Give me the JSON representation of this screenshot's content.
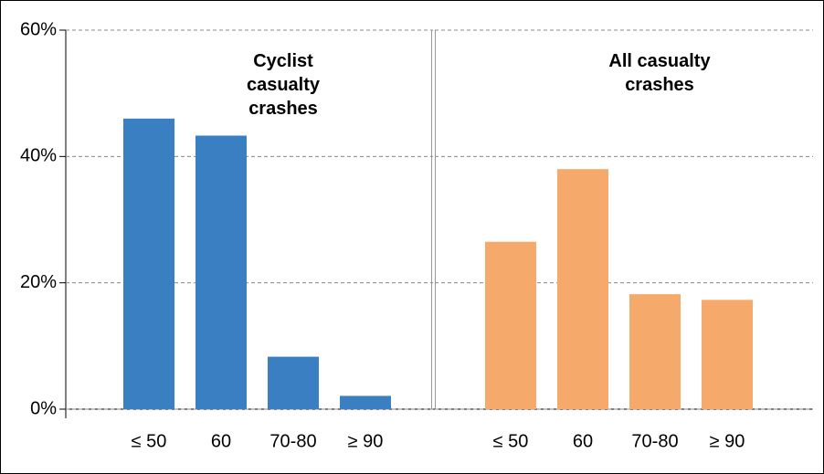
{
  "chart_data": [
    {
      "type": "bar",
      "title": "Cyclist casualty crashes",
      "categories": [
        "≤ 50",
        "60",
        "70-80",
        "≥ 90"
      ],
      "values": [
        46,
        43.3,
        8.3,
        2.1
      ],
      "color": "#3a7fc1",
      "ylim": [
        0,
        60
      ],
      "yticks": [
        {
          "value": 0,
          "label": "0%"
        },
        {
          "value": 20,
          "label": "20%"
        },
        {
          "value": 40,
          "label": "40%"
        },
        {
          "value": 60,
          "label": "60%"
        }
      ],
      "grid": true
    },
    {
      "type": "bar",
      "title": "All casualty crashes",
      "categories": [
        "≤ 50",
        "60",
        "70-80",
        "≥ 90"
      ],
      "values": [
        26.5,
        38,
        18.2,
        17.3
      ],
      "color": "#f5aa6b",
      "ylim": [
        0,
        60
      ],
      "yticks": [
        {
          "value": 0,
          "label": "0%"
        },
        {
          "value": 20,
          "label": "20%"
        },
        {
          "value": 40,
          "label": "40%"
        },
        {
          "value": 60,
          "label": "60%"
        }
      ],
      "grid": true
    }
  ]
}
